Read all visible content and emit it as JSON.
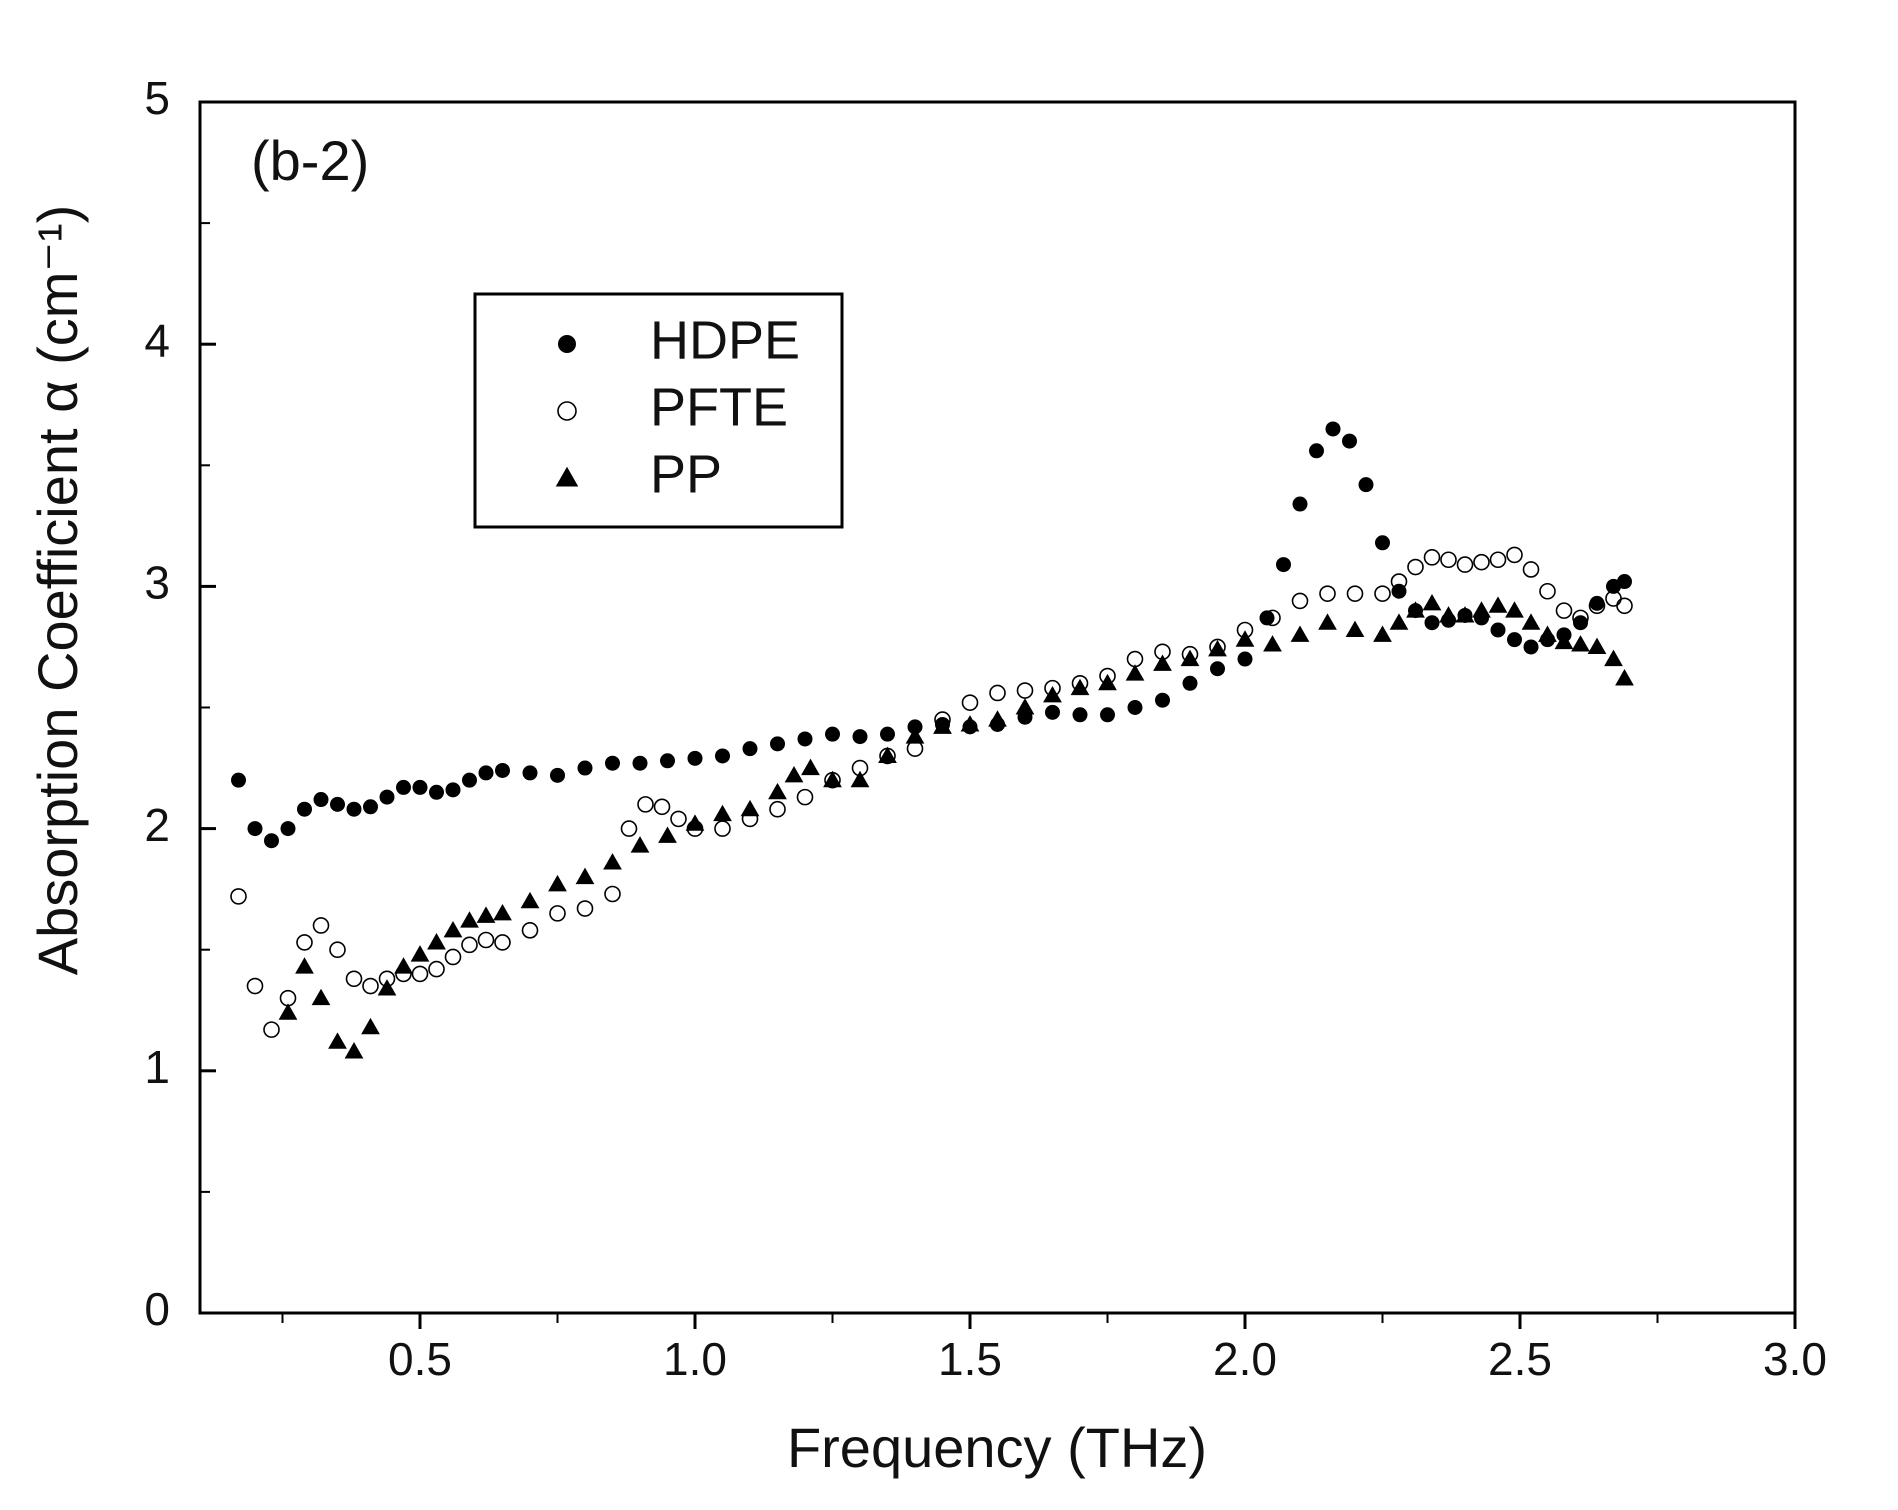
{
  "chart_data": {
    "type": "scatter",
    "annotation": "(b-2)",
    "x_label": "Frequency (THz)",
    "y_label": "Absorption Coefficient α (cm⁻¹)",
    "xlim": [
      0.1,
      3.0
    ],
    "ylim": [
      0,
      5
    ],
    "xticks": [
      0.5,
      {
        "value": 1.0,
        "label": "1.0"
      },
      1.5,
      {
        "value": 2.0,
        "label": "2.0"
      },
      2.5,
      {
        "value": 3.0,
        "label": "3.0"
      }
    ],
    "yticks": [
      0,
      1,
      2,
      3,
      4,
      5
    ],
    "legend": "upper left",
    "series": [
      {
        "name": "HDPE",
        "color": "#000000",
        "marker": "filled-circle",
        "x": [
          0.17,
          0.2,
          0.23,
          0.26,
          0.29,
          0.32,
          0.35,
          0.38,
          0.41,
          0.44,
          0.47,
          0.5,
          0.53,
          0.56,
          0.59,
          0.62,
          0.65,
          0.7,
          0.75,
          0.8,
          0.85,
          0.9,
          0.95,
          1.0,
          1.05,
          1.1,
          1.15,
          1.2,
          1.25,
          1.3,
          1.35,
          1.4,
          1.45,
          1.5,
          1.55,
          1.6,
          1.65,
          1.7,
          1.75,
          1.8,
          1.85,
          1.9,
          1.95,
          2.0,
          2.04,
          2.07,
          2.1,
          2.13,
          2.16,
          2.19,
          2.22,
          2.25,
          2.28,
          2.31,
          2.34,
          2.37,
          2.4,
          2.43,
          2.46,
          2.49,
          2.52,
          2.55,
          2.58,
          2.61,
          2.64,
          2.67,
          2.69
        ],
        "values": [
          2.2,
          2.0,
          1.95,
          2.0,
          2.08,
          2.12,
          2.1,
          2.08,
          2.09,
          2.13,
          2.17,
          2.17,
          2.15,
          2.16,
          2.2,
          2.23,
          2.24,
          2.23,
          2.22,
          2.25,
          2.27,
          2.27,
          2.28,
          2.29,
          2.3,
          2.33,
          2.35,
          2.37,
          2.39,
          2.38,
          2.39,
          2.42,
          2.43,
          2.42,
          2.43,
          2.46,
          2.48,
          2.47,
          2.47,
          2.5,
          2.53,
          2.6,
          2.66,
          2.7,
          2.87,
          3.09,
          3.34,
          3.56,
          3.65,
          3.6,
          3.42,
          3.18,
          2.98,
          2.9,
          2.85,
          2.86,
          2.88,
          2.87,
          2.82,
          2.78,
          2.75,
          2.78,
          2.8,
          2.85,
          2.93,
          3.0,
          3.02
        ]
      },
      {
        "name": "PFTE",
        "color": "#000000",
        "marker": "open-circle",
        "x": [
          0.17,
          0.2,
          0.23,
          0.26,
          0.29,
          0.32,
          0.35,
          0.38,
          0.41,
          0.44,
          0.47,
          0.5,
          0.53,
          0.56,
          0.59,
          0.62,
          0.65,
          0.7,
          0.75,
          0.8,
          0.85,
          0.88,
          0.91,
          0.94,
          0.97,
          1.0,
          1.05,
          1.1,
          1.15,
          1.2,
          1.25,
          1.3,
          1.35,
          1.4,
          1.45,
          1.5,
          1.55,
          1.6,
          1.65,
          1.7,
          1.75,
          1.8,
          1.85,
          1.9,
          1.95,
          2.0,
          2.05,
          2.1,
          2.15,
          2.2,
          2.25,
          2.28,
          2.31,
          2.34,
          2.37,
          2.4,
          2.43,
          2.46,
          2.49,
          2.52,
          2.55,
          2.58,
          2.61,
          2.64,
          2.67,
          2.69
        ],
        "values": [
          1.72,
          1.35,
          1.17,
          1.3,
          1.53,
          1.6,
          1.5,
          1.38,
          1.35,
          1.38,
          1.4,
          1.4,
          1.42,
          1.47,
          1.52,
          1.54,
          1.53,
          1.58,
          1.65,
          1.67,
          1.73,
          2.0,
          2.1,
          2.09,
          2.04,
          2.0,
          2.0,
          2.04,
          2.08,
          2.13,
          2.2,
          2.25,
          2.3,
          2.33,
          2.45,
          2.52,
          2.56,
          2.57,
          2.58,
          2.6,
          2.63,
          2.7,
          2.73,
          2.72,
          2.75,
          2.82,
          2.87,
          2.94,
          2.97,
          2.97,
          2.97,
          3.02,
          3.08,
          3.12,
          3.11,
          3.09,
          3.1,
          3.11,
          3.13,
          3.07,
          2.98,
          2.9,
          2.87,
          2.92,
          2.95,
          2.92
        ]
      },
      {
        "name": "PP",
        "color": "#000000",
        "marker": "filled-triangle",
        "x": [
          0.26,
          0.29,
          0.32,
          0.35,
          0.38,
          0.41,
          0.44,
          0.47,
          0.5,
          0.53,
          0.56,
          0.59,
          0.62,
          0.65,
          0.7,
          0.75,
          0.8,
          0.85,
          0.9,
          0.95,
          1.0,
          1.05,
          1.1,
          1.15,
          1.18,
          1.21,
          1.25,
          1.3,
          1.35,
          1.4,
          1.45,
          1.5,
          1.55,
          1.6,
          1.65,
          1.7,
          1.75,
          1.8,
          1.85,
          1.9,
          1.95,
          2.0,
          2.05,
          2.1,
          2.15,
          2.2,
          2.25,
          2.28,
          2.31,
          2.34,
          2.37,
          2.4,
          2.43,
          2.46,
          2.49,
          2.52,
          2.55,
          2.58,
          2.61,
          2.64,
          2.67,
          2.69
        ],
        "values": [
          1.24,
          1.43,
          1.3,
          1.12,
          1.08,
          1.18,
          1.34,
          1.43,
          1.48,
          1.53,
          1.58,
          1.62,
          1.64,
          1.65,
          1.7,
          1.77,
          1.8,
          1.86,
          1.93,
          1.97,
          2.02,
          2.06,
          2.08,
          2.15,
          2.22,
          2.25,
          2.2,
          2.2,
          2.3,
          2.38,
          2.42,
          2.43,
          2.45,
          2.5,
          2.55,
          2.58,
          2.6,
          2.64,
          2.68,
          2.7,
          2.74,
          2.78,
          2.76,
          2.8,
          2.85,
          2.82,
          2.8,
          2.85,
          2.9,
          2.93,
          2.88,
          2.88,
          2.9,
          2.92,
          2.9,
          2.85,
          2.8,
          2.77,
          2.76,
          2.75,
          2.7,
          2.62
        ]
      }
    ]
  }
}
